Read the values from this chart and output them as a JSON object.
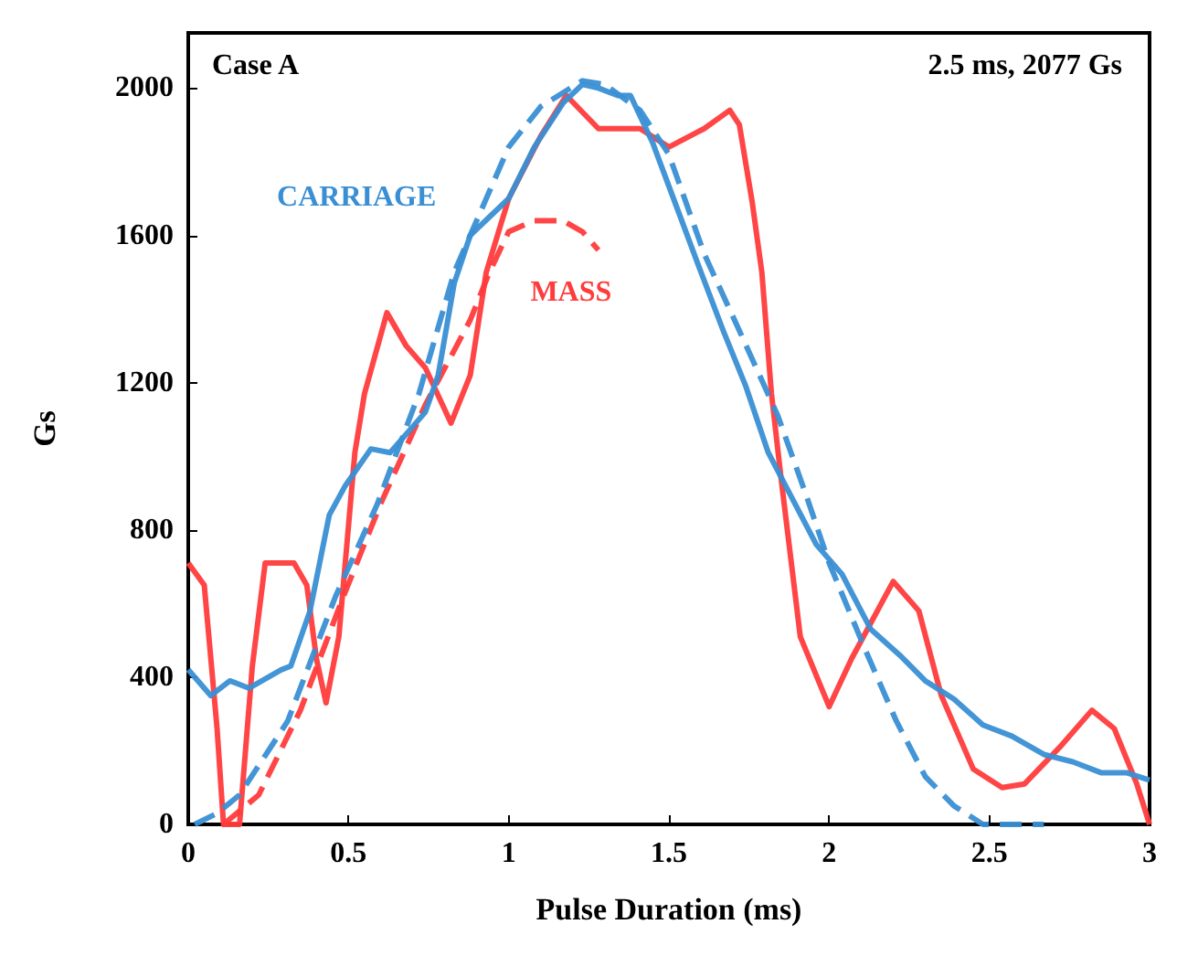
{
  "chart_data": {
    "type": "line",
    "xlabel": "Pulse Duration (ms)",
    "ylabel": "Gs",
    "annotations": [
      "Case A",
      "2.5 ms, 2077 Gs"
    ],
    "xlim": [
      0,
      3
    ],
    "xticks": [
      0,
      0.5,
      1,
      1.5,
      2,
      2.5,
      3
    ],
    "ylim": [
      0,
      2150
    ],
    "yticks": [
      0,
      400,
      800,
      1200,
      1600,
      2000
    ],
    "grid": false,
    "legend": false,
    "marker": "none",
    "series": [
      {
        "name": "CARRIAGE",
        "color": "#3a8fd4",
        "line_style": "solid",
        "x": [
          0,
          0.07,
          0.13,
          0.19,
          0.29,
          0.32,
          0.38,
          0.44,
          0.49,
          0.57,
          0.63,
          0.74,
          0.78,
          0.83,
          0.88,
          1.0,
          1.08,
          1.17,
          1.23,
          1.28,
          1.34,
          1.38,
          1.45,
          1.54,
          1.6,
          1.67,
          1.74,
          1.81,
          1.96,
          2.04,
          2.13,
          2.22,
          2.3,
          2.39,
          2.48,
          2.57,
          2.67,
          2.76,
          2.85,
          2.93,
          3.0
        ],
        "values": [
          420,
          350,
          390,
          370,
          420,
          430,
          580,
          840,
          920,
          1020,
          1010,
          1120,
          1220,
          1470,
          1600,
          1700,
          1840,
          1960,
          2010,
          2000,
          1980,
          1980,
          1850,
          1640,
          1500,
          1340,
          1190,
          1010,
          760,
          680,
          530,
          460,
          390,
          340,
          270,
          240,
          190,
          170,
          140,
          140,
          120
        ]
      },
      {
        "color": "#3a8fd4",
        "line_style": "dashed",
        "x": [
          0.02,
          0.09,
          0.16,
          0.31,
          0.46,
          0.59,
          0.72,
          0.83,
          1.0,
          1.1,
          1.23,
          1.3,
          1.41,
          1.5,
          1.61,
          1.71,
          1.84,
          1.93,
          2.0,
          2.11,
          2.21,
          2.3,
          2.39,
          2.48,
          2.67
        ],
        "values": [
          0,
          30,
          80,
          280,
          620,
          870,
          1170,
          1500,
          1840,
          1950,
          2020,
          2010,
          1940,
          1820,
          1550,
          1360,
          1110,
          890,
          710,
          480,
          280,
          130,
          50,
          0,
          0
        ]
      },
      {
        "color": "#ff3b3b",
        "line_style": "solid",
        "x": [
          0,
          0.05,
          0.09,
          0.11,
          0.16,
          0.2,
          0.24,
          0.33,
          0.37,
          0.4,
          0.43,
          0.47,
          0.52,
          0.55,
          0.62,
          0.68,
          0.74,
          0.82,
          0.88,
          0.93,
          1.0,
          1.1,
          1.18,
          1.28,
          1.41,
          1.5,
          1.61,
          1.69,
          1.72,
          1.76,
          1.79,
          1.82,
          1.85,
          1.91,
          2.0,
          2.07,
          2.2,
          2.28,
          2.35,
          2.45,
          2.54,
          2.61,
          2.72,
          2.82,
          2.89,
          2.96,
          3.0
        ],
        "values": [
          710,
          650,
          260,
          0,
          0,
          430,
          710,
          710,
          650,
          450,
          330,
          510,
          1010,
          1170,
          1390,
          1300,
          1240,
          1090,
          1220,
          1500,
          1700,
          1870,
          1980,
          1890,
          1890,
          1840,
          1890,
          1940,
          1900,
          1690,
          1500,
          1170,
          940,
          510,
          320,
          450,
          660,
          580,
          350,
          150,
          100,
          110,
          210,
          310,
          260,
          110,
          0
        ]
      },
      {
        "name": "MASS",
        "color": "#ff3b3b",
        "line_style": "dashed",
        "x": [
          0.11,
          0.22,
          0.35,
          0.48,
          0.6,
          0.74,
          0.88,
          0.94,
          1.0,
          1.08,
          1.17,
          1.23,
          1.28
        ],
        "values": [
          0,
          80,
          310,
          610,
          870,
          1140,
          1370,
          1500,
          1610,
          1640,
          1640,
          1610,
          1560
        ]
      }
    ]
  }
}
